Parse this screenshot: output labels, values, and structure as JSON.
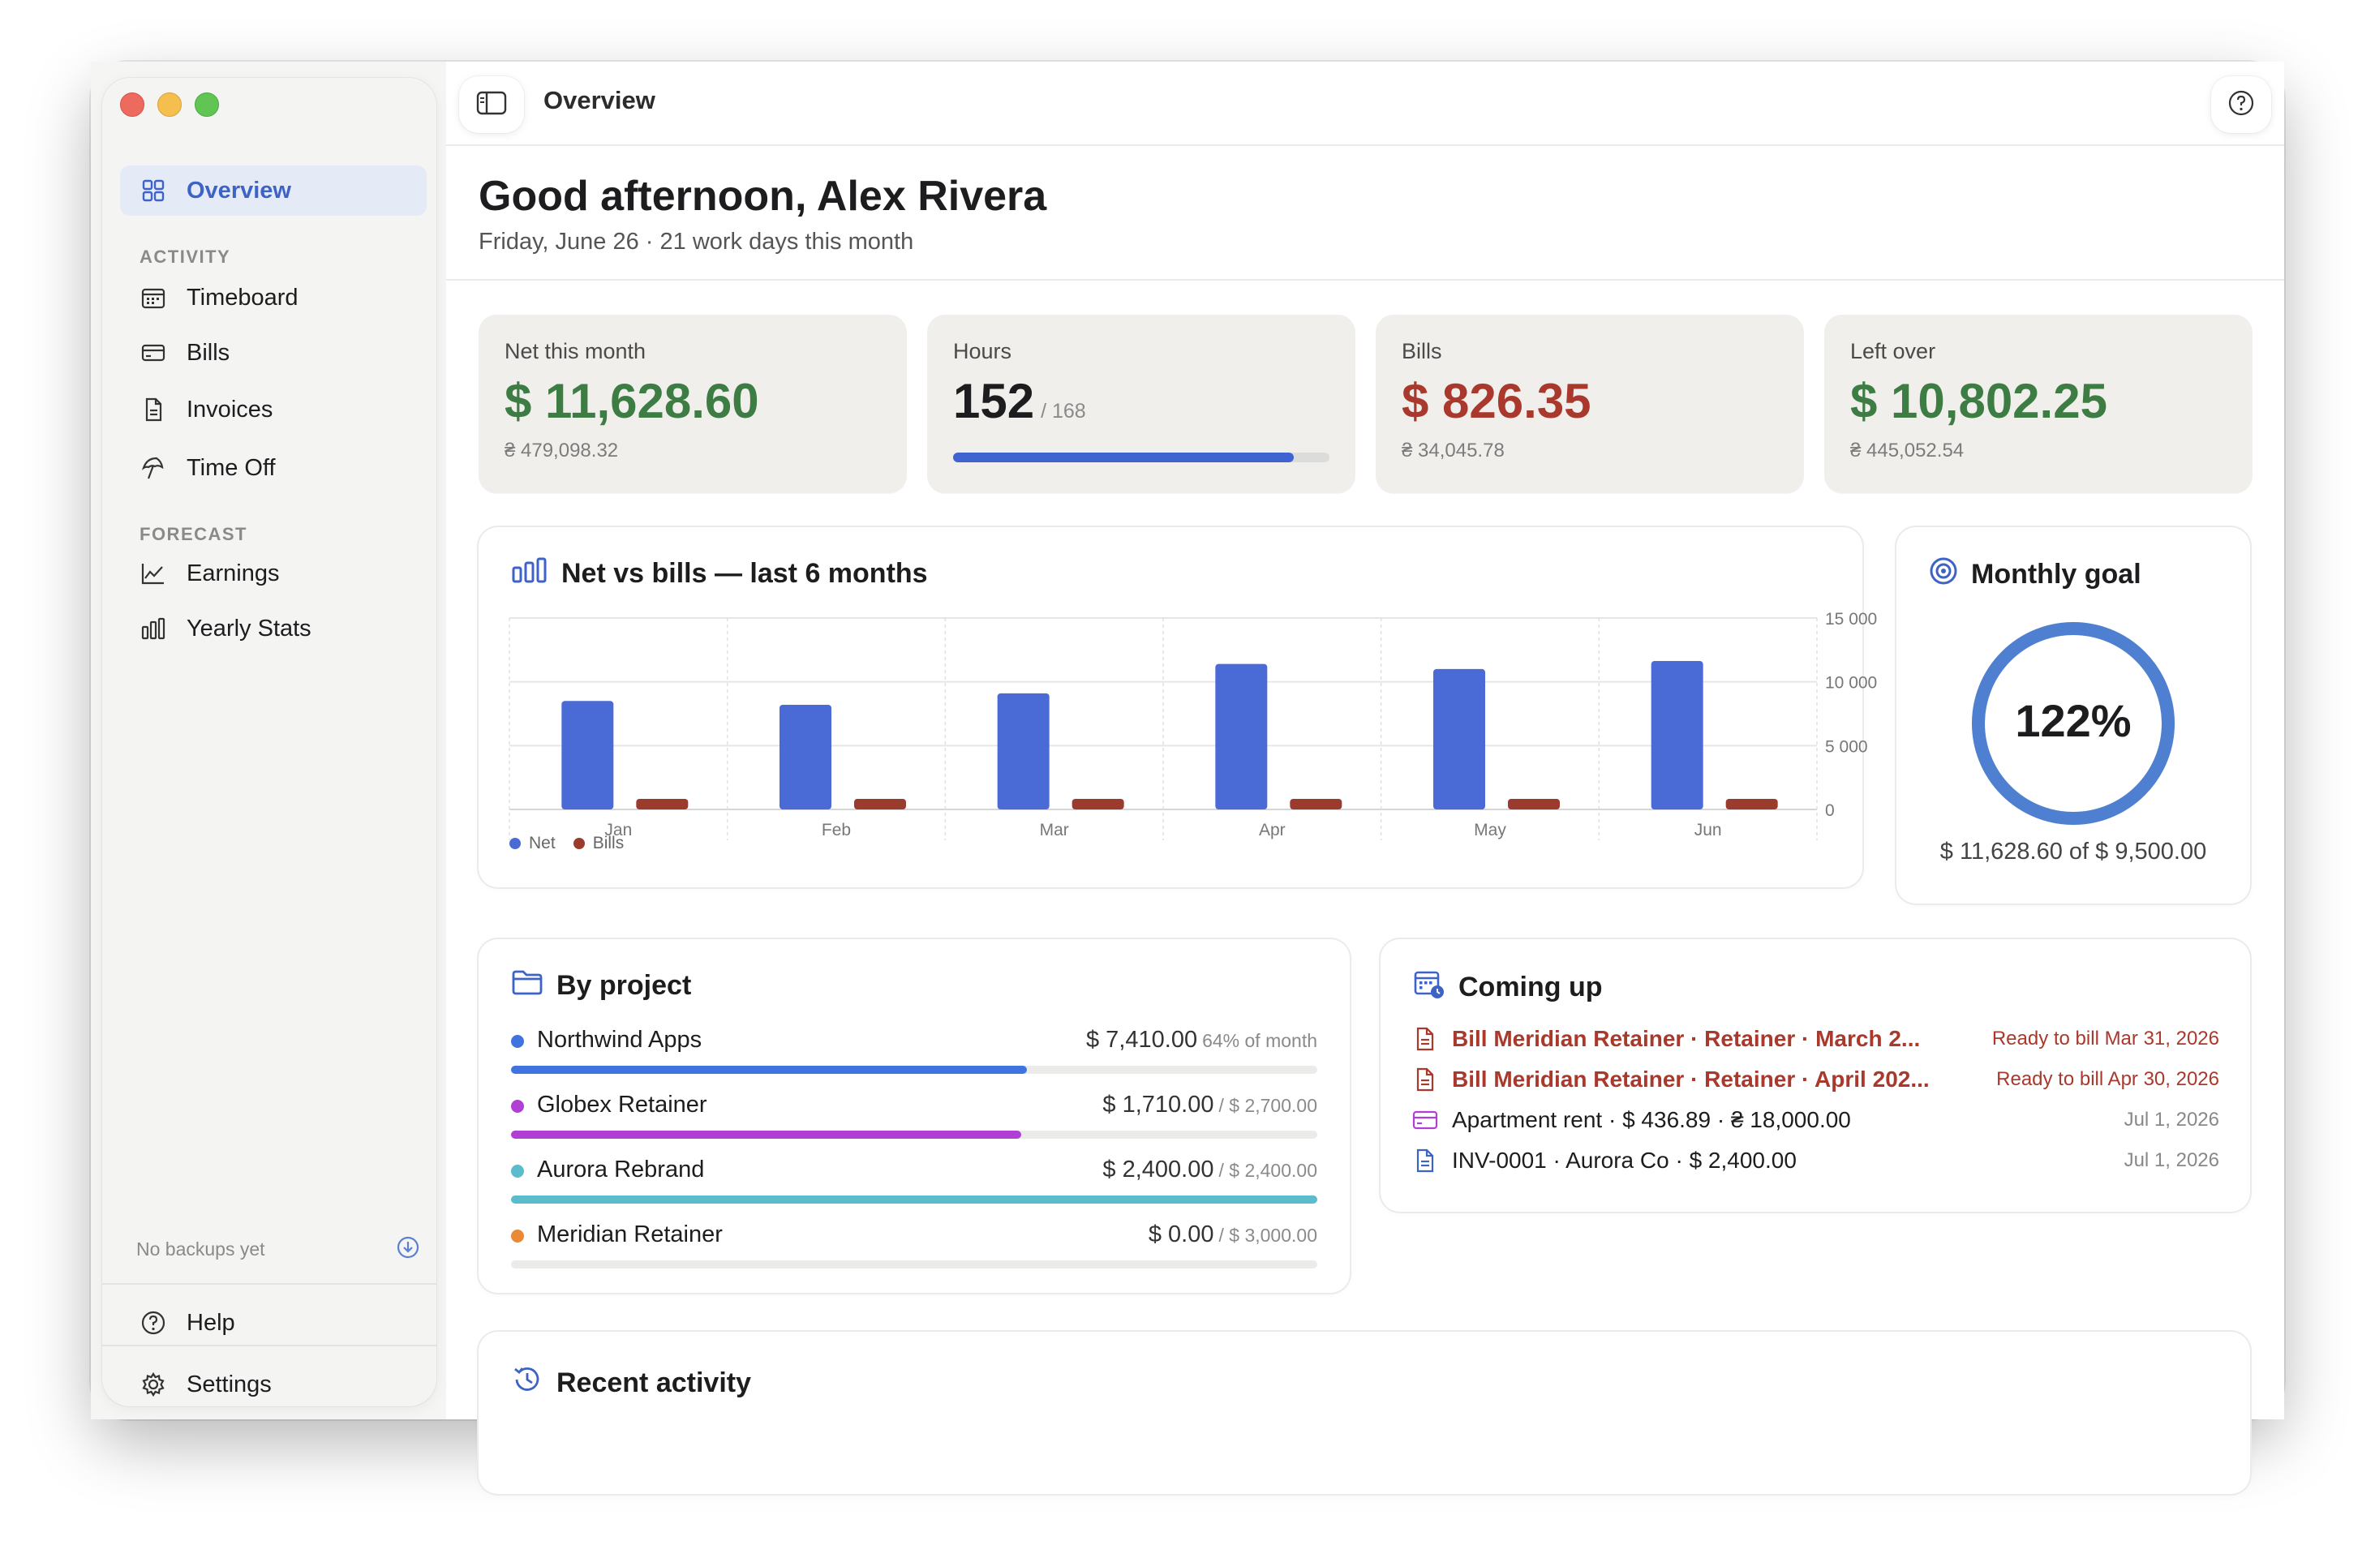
{
  "window": {
    "title": "Overview"
  },
  "sidebar": {
    "overview": {
      "label": "Overview"
    },
    "activity_label": "ACTIVITY",
    "activity_items": [
      {
        "label": "Timeboard",
        "icon": "calendar-icon"
      },
      {
        "label": "Bills",
        "icon": "card-icon"
      },
      {
        "label": "Invoices",
        "icon": "document-icon"
      },
      {
        "label": "Time Off",
        "icon": "umbrella-icon"
      }
    ],
    "forecast_label": "FORECAST",
    "forecast_items": [
      {
        "label": "Earnings",
        "icon": "trend-icon"
      },
      {
        "label": "Yearly Stats",
        "icon": "bar-chart-icon"
      }
    ],
    "backup_text": "No backups yet",
    "help": {
      "label": "Help"
    },
    "settings": {
      "label": "Settings"
    }
  },
  "header": {
    "greeting": "Good afternoon, Alex Rivera",
    "subtitle": "Friday, June 26 · 21 work days this month"
  },
  "stats": [
    {
      "label": "Net this month",
      "value": "$ 11,628.60",
      "sub": "₴ 479,098.32",
      "color": "#3d7d44"
    },
    {
      "label": "Hours",
      "value": "152",
      "denom": "/ 168",
      "progress": 0.905
    },
    {
      "label": "Bills",
      "value": "$ 826.35",
      "sub": "₴ 34,045.78",
      "color": "#a8392c"
    },
    {
      "label": "Left over",
      "value": "$ 10,802.25",
      "sub": "₴ 445,052.54",
      "color": "#3d7d44"
    }
  ],
  "net_chart": {
    "title": "Net vs bills — last 6 months"
  },
  "chart_data": {
    "type": "bar",
    "categories": [
      "Jan",
      "Feb",
      "Mar",
      "Apr",
      "May",
      "Jun"
    ],
    "series": [
      {
        "name": "Net",
        "values": [
          8500,
          8200,
          9100,
          11400,
          11000,
          11628.6
        ],
        "color": "#4a6bd6"
      },
      {
        "name": "Bills",
        "values": [
          830,
          830,
          830,
          830,
          826,
          826.35
        ],
        "color": "#9a3b2e"
      }
    ],
    "yticks": [
      "15 000",
      "10 000",
      "5 000",
      "0"
    ],
    "ylim": [
      0,
      15000
    ],
    "legend": "bottom-left",
    "grid": true
  },
  "goal": {
    "title": "Monthly goal",
    "percent_label": "122%",
    "progress": 1.0,
    "caption": "$ 11,628.60 of $ 9,500.00"
  },
  "projects": {
    "title": "By project",
    "items": [
      {
        "name": "Northwind Apps",
        "amount": "$ 7,410.00",
        "extra": "64% of month",
        "fraction": 0.64,
        "color": "#3f74e0"
      },
      {
        "name": "Globex Retainer",
        "amount": "$ 1,710.00",
        "extra": "/ $ 2,700.00",
        "fraction": 0.633,
        "color": "#b13fd3"
      },
      {
        "name": "Aurora Rebrand",
        "amount": "$ 2,400.00",
        "extra": "/ $ 2,400.00",
        "fraction": 1.0,
        "color": "#5bbccc"
      },
      {
        "name": "Meridian Retainer",
        "amount": "$ 0.00",
        "extra": "/ $ 3,000.00",
        "fraction": 0.0,
        "color": "#e98a37"
      }
    ]
  },
  "upcoming": {
    "title": "Coming up",
    "items": [
      {
        "text": "Bill Meridian Retainer · Retainer · March 2...",
        "date": "Ready to bill Mar 31, 2026",
        "kind": "bill"
      },
      {
        "text": "Bill Meridian Retainer · Retainer · April 202...",
        "date": "Ready to bill Apr 30, 2026",
        "kind": "bill"
      },
      {
        "text": "Apartment rent · $ 436.89 · ₴ 18,000.00",
        "date": "Jul 1, 2026",
        "kind": "rent"
      },
      {
        "text": "INV-0001 · Aurora Co · $ 2,400.00",
        "date": "Jul 1, 2026",
        "kind": "invoice"
      }
    ]
  },
  "recent": {
    "title": "Recent activity"
  }
}
